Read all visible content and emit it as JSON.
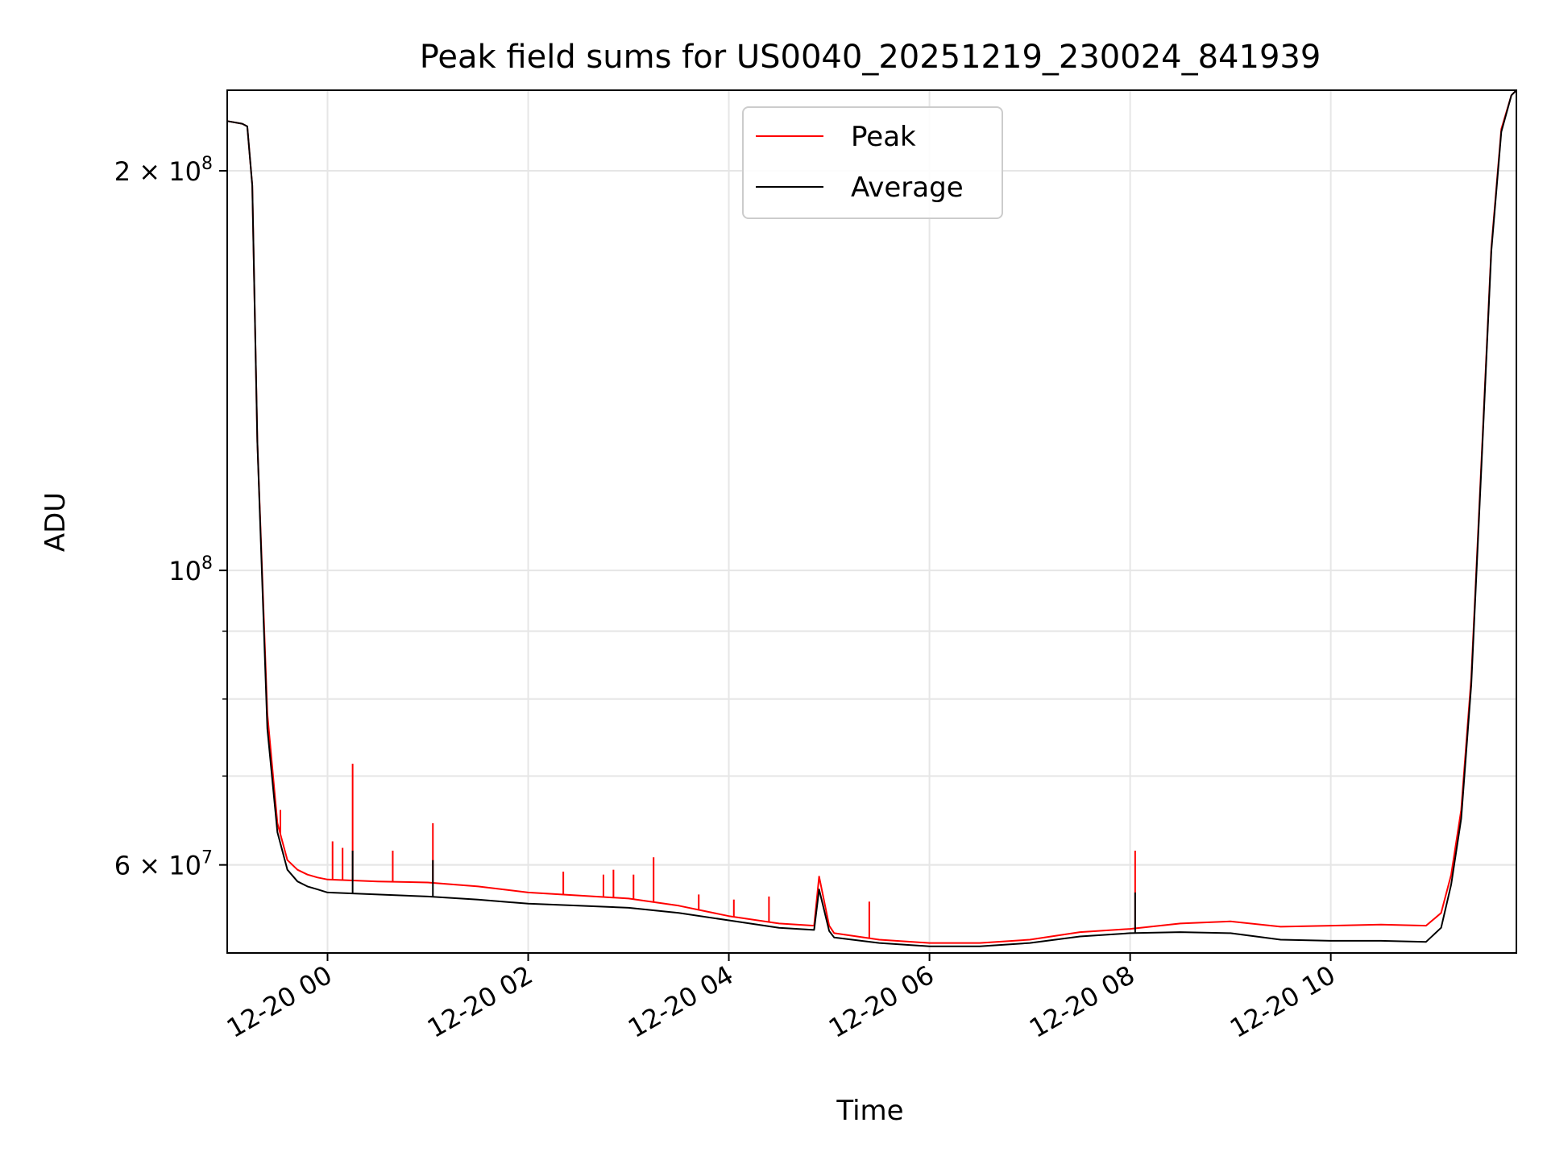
{
  "chart_data": {
    "type": "line",
    "title": "Peak field sums for US0040_20251219_230024_841939",
    "xlabel": "Time",
    "ylabel": "ADU",
    "y_scale": "log",
    "grid": true,
    "legend_position": "upper center",
    "xlim_hours": [
      -1.0,
      11.85
    ],
    "ylim": [
      51500000,
      230000000
    ],
    "x_ticks": [
      {
        "hours": 0,
        "label": "12-20 00"
      },
      {
        "hours": 2,
        "label": "12-20 02"
      },
      {
        "hours": 4,
        "label": "12-20 04"
      },
      {
        "hours": 6,
        "label": "12-20 06"
      },
      {
        "hours": 8,
        "label": "12-20 08"
      },
      {
        "hours": 10,
        "label": "12-20 10"
      }
    ],
    "y_ticks_major": [
      {
        "value": 100000000,
        "base": "10",
        "exp": "8",
        "mant": ""
      },
      {
        "value": 200000000,
        "base": "10",
        "exp": "8",
        "mant": "2"
      },
      {
        "value": 60000000,
        "base": "10",
        "exp": "7",
        "mant": "6"
      }
    ],
    "y_ticks_minor": [
      60000000,
      70000000,
      80000000,
      90000000,
      200000000
    ],
    "series": [
      {
        "name": "Peak",
        "color": "#ff0000",
        "x_hours": [
          -1.0,
          -0.85,
          -0.8,
          -0.75,
          -0.7,
          -0.6,
          -0.5,
          -0.4,
          -0.3,
          -0.2,
          -0.1,
          0.0,
          0.5,
          1.0,
          1.5,
          2.0,
          2.5,
          3.0,
          3.5,
          4.0,
          4.5,
          4.85,
          4.9,
          5.0,
          5.05,
          5.5,
          6.0,
          6.5,
          7.0,
          7.5,
          8.0,
          8.5,
          9.0,
          9.5,
          10.0,
          10.5,
          10.95,
          11.1,
          11.2,
          11.3,
          11.4,
          11.5,
          11.6,
          11.7,
          11.8,
          11.85
        ],
        "values": [
          218000000,
          217000000,
          216000000,
          195000000,
          125000000,
          78000000,
          64500000,
          60500000,
          59500000,
          59000000,
          58700000,
          58500000,
          58300000,
          58200000,
          57800000,
          57200000,
          56900000,
          56600000,
          55900000,
          54900000,
          54200000,
          54000000,
          58800000,
          54000000,
          53300000,
          52700000,
          52400000,
          52400000,
          52700000,
          53400000,
          53700000,
          54200000,
          54400000,
          53900000,
          54000000,
          54100000,
          54000000,
          55200000,
          59000000,
          66000000,
          83000000,
          120000000,
          175000000,
          215000000,
          228000000,
          230000000
        ]
      },
      {
        "name": "Average",
        "color": "#000000",
        "x_hours": [
          -1.0,
          -0.85,
          -0.8,
          -0.75,
          -0.7,
          -0.6,
          -0.5,
          -0.4,
          -0.3,
          -0.2,
          -0.1,
          0.0,
          0.5,
          1.0,
          1.5,
          2.0,
          2.5,
          3.0,
          3.5,
          4.0,
          4.5,
          4.85,
          4.9,
          5.0,
          5.05,
          5.5,
          6.0,
          6.5,
          7.0,
          7.5,
          8.0,
          8.5,
          9.0,
          9.5,
          10.0,
          10.5,
          10.95,
          11.1,
          11.2,
          11.3,
          11.4,
          11.5,
          11.6,
          11.7,
          11.8,
          11.85
        ],
        "values": [
          218000000,
          217000000,
          216000000,
          195000000,
          125000000,
          76000000,
          63500000,
          59500000,
          58300000,
          57800000,
          57500000,
          57200000,
          57000000,
          56800000,
          56500000,
          56100000,
          55900000,
          55700000,
          55200000,
          54500000,
          53800000,
          53600000,
          57500000,
          53500000,
          52900000,
          52400000,
          52100000,
          52100000,
          52400000,
          53000000,
          53300000,
          53400000,
          53300000,
          52700000,
          52600000,
          52600000,
          52500000,
          53800000,
          58000000,
          65000000,
          82000000,
          119000000,
          174000000,
          214000000,
          228000000,
          230000000
        ]
      }
    ],
    "spikes": [
      {
        "series": "Peak",
        "x_hours": -0.47,
        "value": 66000000
      },
      {
        "series": "Peak",
        "x_hours": 0.05,
        "value": 62500000
      },
      {
        "series": "Peak",
        "x_hours": 0.15,
        "value": 61800000
      },
      {
        "series": "Peak",
        "x_hours": 0.25,
        "value": 71500000
      },
      {
        "series": "Peak",
        "x_hours": 0.65,
        "value": 61500000
      },
      {
        "series": "Peak",
        "x_hours": 1.05,
        "value": 64500000
      },
      {
        "series": "Peak",
        "x_hours": 2.35,
        "value": 59300000
      },
      {
        "series": "Peak",
        "x_hours": 2.75,
        "value": 59000000
      },
      {
        "series": "Peak",
        "x_hours": 2.85,
        "value": 59500000
      },
      {
        "series": "Peak",
        "x_hours": 3.05,
        "value": 59000000
      },
      {
        "series": "Peak",
        "x_hours": 3.25,
        "value": 60800000
      },
      {
        "series": "Peak",
        "x_hours": 3.7,
        "value": 57000000
      },
      {
        "series": "Peak",
        "x_hours": 4.05,
        "value": 56500000
      },
      {
        "series": "Peak",
        "x_hours": 4.4,
        "value": 56800000
      },
      {
        "series": "Peak",
        "x_hours": 5.4,
        "value": 56300000
      },
      {
        "series": "Peak",
        "x_hours": 8.05,
        "value": 61500000
      },
      {
        "series": "Average",
        "x_hours": 0.25,
        "value": 61500000
      },
      {
        "series": "Average",
        "x_hours": 1.05,
        "value": 60500000
      },
      {
        "series": "Average",
        "x_hours": 8.05,
        "value": 57200000
      }
    ]
  }
}
